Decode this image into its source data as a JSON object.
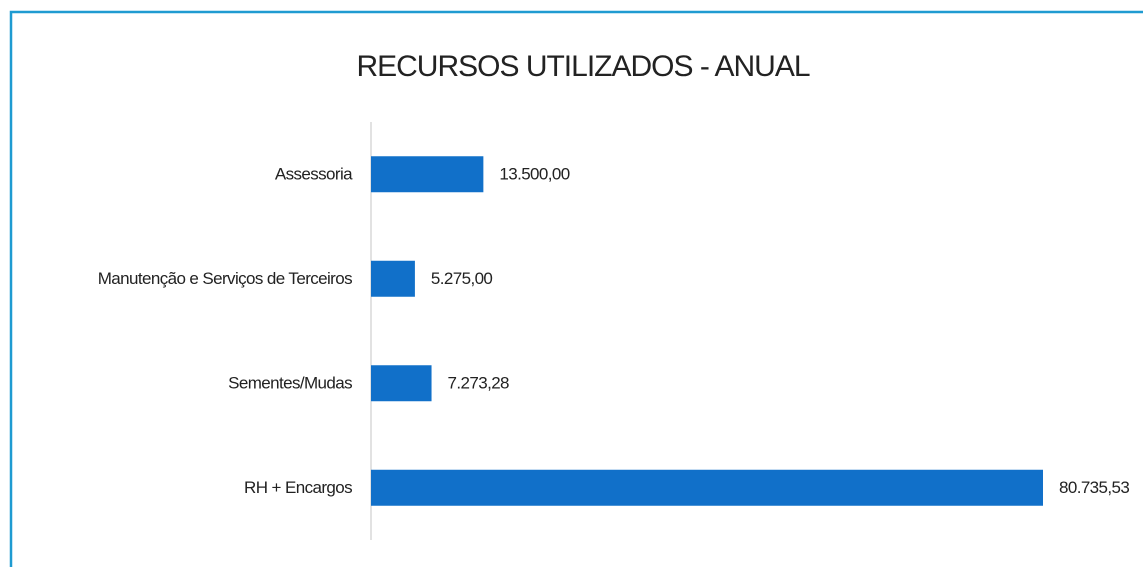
{
  "chart_data": {
    "type": "bar",
    "orientation": "horizontal",
    "title": "RECURSOS UTILIZADOS - ANUAL",
    "categories": [
      "Assessoria",
      "Manutenção e Serviços de Terceiros",
      "Sementes/Mudas",
      "RH +  Encargos"
    ],
    "values": [
      13500.0,
      5275.0,
      7273.28,
      80735.53
    ],
    "value_labels": [
      "13.500,00",
      "5.275,00",
      "7.273,28",
      "80.735,53"
    ],
    "color": "#1170c9"
  }
}
